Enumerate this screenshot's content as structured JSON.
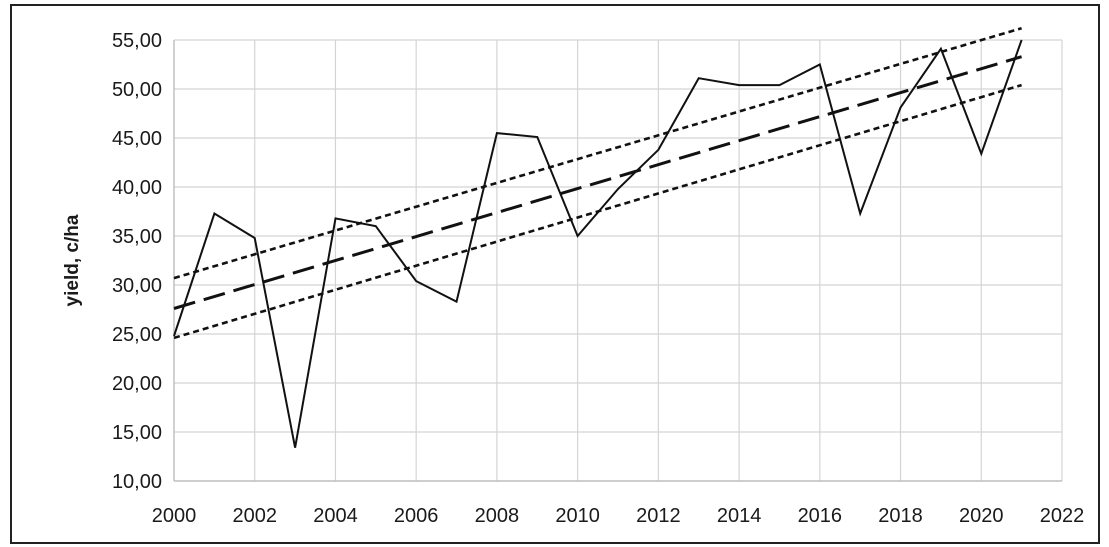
{
  "chart_data": {
    "type": "line",
    "title": "",
    "xlabel": "",
    "ylabel": "yield, c/ha",
    "xlim": [
      2000,
      2022
    ],
    "ylim": [
      10,
      55
    ],
    "x_ticks": [
      "2000",
      "2002",
      "2004",
      "2006",
      "2008",
      "2010",
      "2012",
      "2014",
      "2016",
      "2018",
      "2020",
      "2022"
    ],
    "y_ticks": [
      "10,00",
      "15,00",
      "20,00",
      "25,00",
      "30,00",
      "35,00",
      "40,00",
      "45,00",
      "50,00",
      "55,00"
    ],
    "grid": true,
    "legend": "none",
    "series": [
      {
        "style": "solid",
        "x": [
          2000,
          2001,
          2002,
          2003,
          2004,
          2005,
          2006,
          2007,
          2008,
          2009,
          2010,
          2011,
          2012,
          2013,
          2014,
          2015,
          2016,
          2017,
          2018,
          2019,
          2020,
          2021
        ],
        "y": [
          24.8,
          37.3,
          34.8,
          13.4,
          36.8,
          36.0,
          30.4,
          28.3,
          45.5,
          45.1,
          35.0,
          39.8,
          43.8,
          51.1,
          50.4,
          50.4,
          52.5,
          37.3,
          48.1,
          54.1,
          43.4,
          55.0
        ]
      },
      {
        "style": "long-dash",
        "x": [
          2000,
          2021
        ],
        "y": [
          27.6,
          53.3
        ]
      },
      {
        "style": "dotted",
        "x": [
          2000,
          2021
        ],
        "y": [
          30.7,
          56.2
        ]
      },
      {
        "style": "dotted",
        "x": [
          2000,
          2021
        ],
        "y": [
          24.6,
          50.4
        ]
      }
    ]
  }
}
